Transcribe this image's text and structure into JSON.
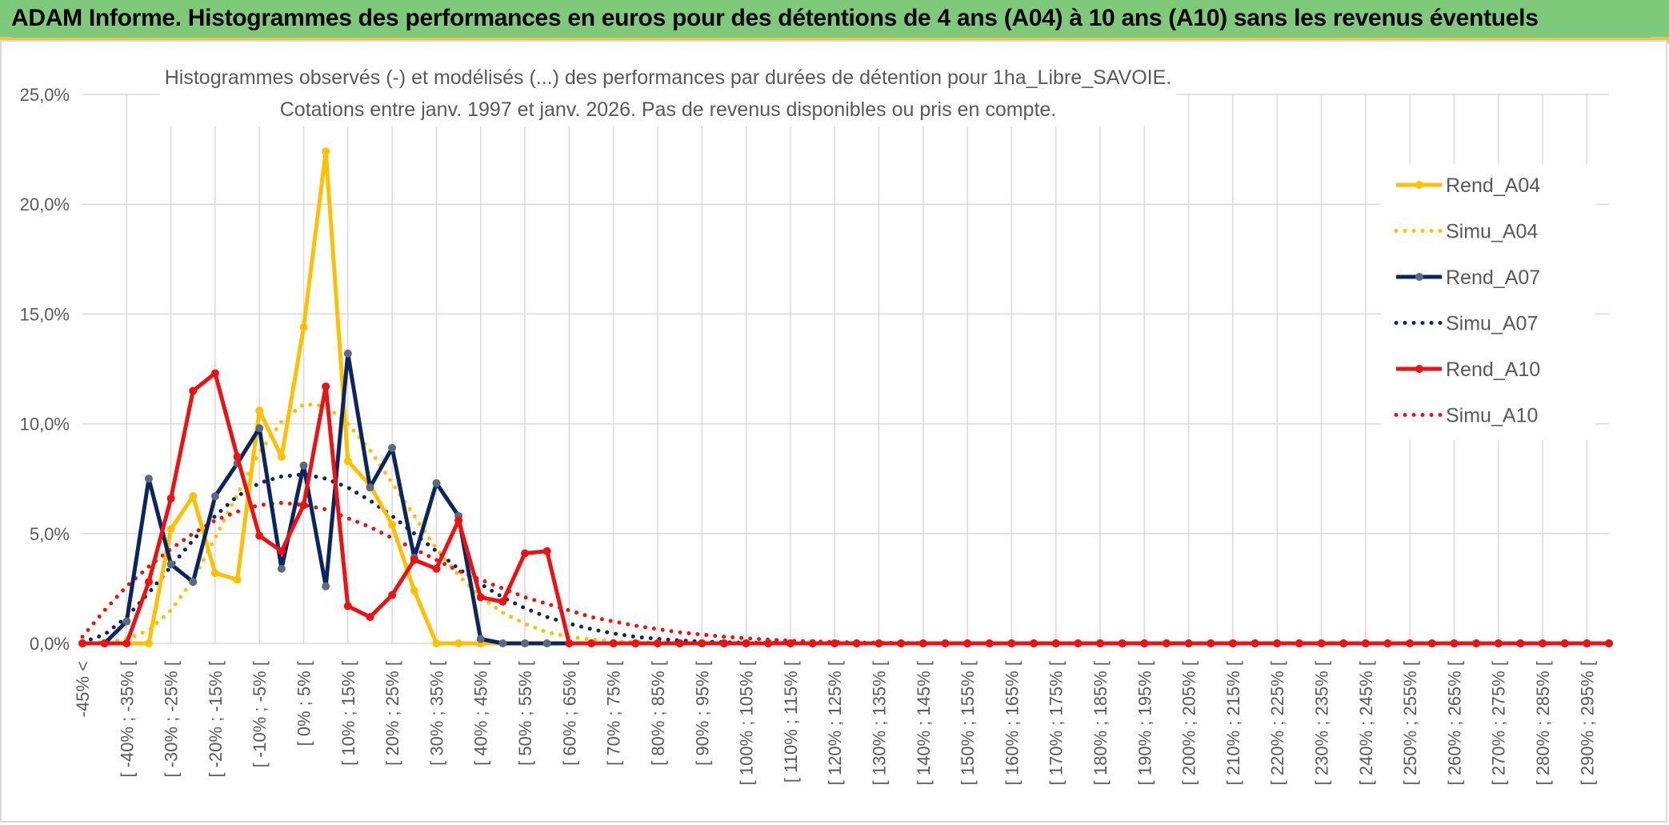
{
  "header": {
    "title": "ADAM Informe. Histogrammes des performances en euros pour des détentions de 4 ans (A04) à 10 ans (A10) sans les revenus éventuels"
  },
  "colors": {
    "banner": "#7ec97a",
    "a04": "#ffc000",
    "a07": "#0b2560",
    "a07_marker": "#5a6b80",
    "a10": "#ee1111",
    "grid": "#d9d9d9",
    "text": "#595959"
  },
  "chart_data": {
    "type": "line",
    "title": "Histogrammes observés (-) et modélisés (...) des performances par durées de détention pour 1ha_Libre_SAVOIE.",
    "subtitle": "Cotations entre janv. 1997 et janv. 2026. Pas de revenus disponibles ou pris en compte.",
    "ylim": [
      0,
      25
    ],
    "yticks": [
      "0,0%",
      "5,0%",
      "10,0%",
      "15,0%",
      "20,0%",
      "25,0%"
    ],
    "yvalues": [
      0,
      5,
      10,
      15,
      20,
      25
    ],
    "x_labels": [
      "-45% <",
      "[ -40% ; -35% [",
      "[ -30% ; -25% [",
      "[ -20% ; -15% [",
      "[ -10% ; -5% [",
      "[ 0% ; 5% [",
      "[ 10% ; 15% [",
      "[ 20% ; 25% [",
      "[ 30% ; 35% [",
      "[ 40% ; 45% [",
      "[ 50% ; 55% [",
      "[ 60% ; 65% [",
      "[ 70% ; 75% [",
      "[ 80% ; 85% [",
      "[ 90% ; 95% [",
      "[ 100% ; 105% [",
      "[ 110% ; 115% [",
      "[ 120% ; 125% [",
      "[ 130% ; 135% [",
      "[ 140% ; 145% [",
      "[ 150% ; 155% [",
      "[ 160% ; 165% [",
      "[ 170% ; 175% [",
      "[ 180% ; 185% [",
      "[ 190% ; 195% [",
      "[ 200% ; 205% [",
      "[ 210% ; 215% [",
      "[ 220% ; 225% [",
      "[ 230% ; 235% [",
      "[ 240% ; 245% [",
      "[ 250% ; 255% [",
      "[ 260% ; 265% [",
      "[ 270% ; 275% [",
      "[ 280% ; 285% [",
      "[ 290% ; 295% ["
    ],
    "x_label_step": 2,
    "n_points": 70,
    "legend": [
      "Rend_A04",
      "Simu_A04",
      "Rend_A07",
      "Simu_A07",
      "Rend_A10",
      "Simu_A10"
    ],
    "series": [
      {
        "name": "Rend_A04",
        "style": "solid",
        "color": "#ffc000",
        "values": [
          0,
          0,
          0,
          0,
          5.2,
          6.7,
          3.2,
          2.9,
          10.6,
          8.5,
          14.4,
          22.4,
          8.3,
          7.2,
          5.4,
          2.4,
          0,
          0,
          0,
          0,
          0,
          0,
          0,
          0,
          0,
          0,
          0,
          0,
          0,
          0,
          0,
          0,
          0,
          0,
          0,
          0,
          0,
          0,
          0,
          0,
          0,
          0,
          0,
          0,
          0,
          0,
          0,
          0,
          0,
          0,
          0,
          0,
          0,
          0,
          0,
          0,
          0,
          0,
          0,
          0,
          0,
          0,
          0,
          0,
          0,
          0,
          0,
          0,
          0,
          0
        ]
      },
      {
        "name": "Simu_A04",
        "style": "dotted",
        "color": "#ffc000",
        "values": [
          0.0,
          0.05,
          0.2,
          0.6,
          1.5,
          2.9,
          4.8,
          6.8,
          8.7,
          10.1,
          10.9,
          10.8,
          10.0,
          8.8,
          7.3,
          5.8,
          4.3,
          3.1,
          2.1,
          1.4,
          0.9,
          0.5,
          0.3,
          0.18,
          0.1,
          0.06,
          0.03,
          0.02,
          0.01,
          0,
          0,
          0,
          0,
          0,
          0,
          0,
          0,
          0,
          0,
          0,
          0,
          0,
          0,
          0,
          0,
          0,
          0,
          0,
          0,
          0,
          0,
          0,
          0,
          0,
          0,
          0,
          0,
          0,
          0,
          0,
          0,
          0,
          0,
          0,
          0,
          0,
          0,
          0,
          0,
          0
        ]
      },
      {
        "name": "Rend_A07",
        "style": "solid",
        "color": "#0b2560",
        "values": [
          0,
          0,
          1.0,
          7.5,
          3.6,
          2.8,
          6.7,
          8.2,
          9.8,
          3.4,
          8.1,
          2.6,
          13.2,
          7.1,
          8.9,
          3.9,
          7.3,
          5.8,
          0.2,
          0,
          0,
          0,
          0,
          0,
          0,
          0,
          0,
          0,
          0,
          0,
          0,
          0,
          0,
          0,
          0,
          0,
          0,
          0,
          0,
          0,
          0,
          0,
          0,
          0,
          0,
          0,
          0,
          0,
          0,
          0,
          0,
          0,
          0,
          0,
          0,
          0,
          0,
          0,
          0,
          0,
          0,
          0,
          0,
          0,
          0,
          0,
          0,
          0,
          0,
          0
        ]
      },
      {
        "name": "Simu_A07",
        "style": "dotted",
        "color": "#0b2560",
        "values": [
          0.05,
          0.4,
          1.2,
          2.3,
          3.5,
          4.7,
          5.8,
          6.7,
          7.3,
          7.6,
          7.7,
          7.5,
          7.1,
          6.5,
          5.8,
          5.0,
          4.2,
          3.4,
          2.7,
          2.1,
          1.6,
          1.2,
          0.9,
          0.65,
          0.45,
          0.3,
          0.2,
          0.13,
          0.08,
          0.05,
          0.03,
          0.02,
          0.01,
          0,
          0,
          0,
          0,
          0,
          0,
          0,
          0,
          0,
          0,
          0,
          0,
          0,
          0,
          0,
          0,
          0,
          0,
          0,
          0,
          0,
          0,
          0,
          0,
          0,
          0,
          0,
          0,
          0,
          0,
          0,
          0,
          0,
          0,
          0,
          0,
          0
        ]
      },
      {
        "name": "Rend_A10",
        "style": "solid",
        "color": "#ee1111",
        "values": [
          0,
          0,
          0,
          2.8,
          6.6,
          11.5,
          12.3,
          8.5,
          4.9,
          4.2,
          6.3,
          11.7,
          1.7,
          1.2,
          2.2,
          3.8,
          3.4,
          5.6,
          2.1,
          1.9,
          4.1,
          4.2,
          0,
          0,
          0,
          0,
          0,
          0,
          0,
          0,
          0,
          0,
          0,
          0,
          0,
          0,
          0,
          0,
          0,
          0,
          0,
          0,
          0,
          0,
          0,
          0,
          0,
          0,
          0,
          0,
          0,
          0,
          0,
          0,
          0,
          0,
          0,
          0,
          0,
          0,
          0,
          0,
          0,
          0,
          0,
          0,
          0,
          0,
          0,
          0
        ]
      },
      {
        "name": "Simu_A10",
        "style": "dotted",
        "color": "#ee1111",
        "values": [
          0.3,
          1.5,
          2.6,
          3.5,
          4.3,
          5.0,
          5.6,
          6.0,
          6.3,
          6.4,
          6.3,
          6.1,
          5.7,
          5.3,
          4.8,
          4.3,
          3.8,
          3.3,
          2.9,
          2.5,
          2.1,
          1.8,
          1.5,
          1.2,
          1.0,
          0.8,
          0.65,
          0.5,
          0.4,
          0.3,
          0.23,
          0.17,
          0.12,
          0.09,
          0.06,
          0.04,
          0.03,
          0.02,
          0.01,
          0,
          0,
          0,
          0,
          0,
          0,
          0,
          0,
          0,
          0,
          0,
          0,
          0,
          0,
          0,
          0,
          0,
          0,
          0,
          0,
          0,
          0,
          0,
          0,
          0,
          0,
          0,
          0,
          0,
          0,
          0
        ]
      }
    ]
  }
}
